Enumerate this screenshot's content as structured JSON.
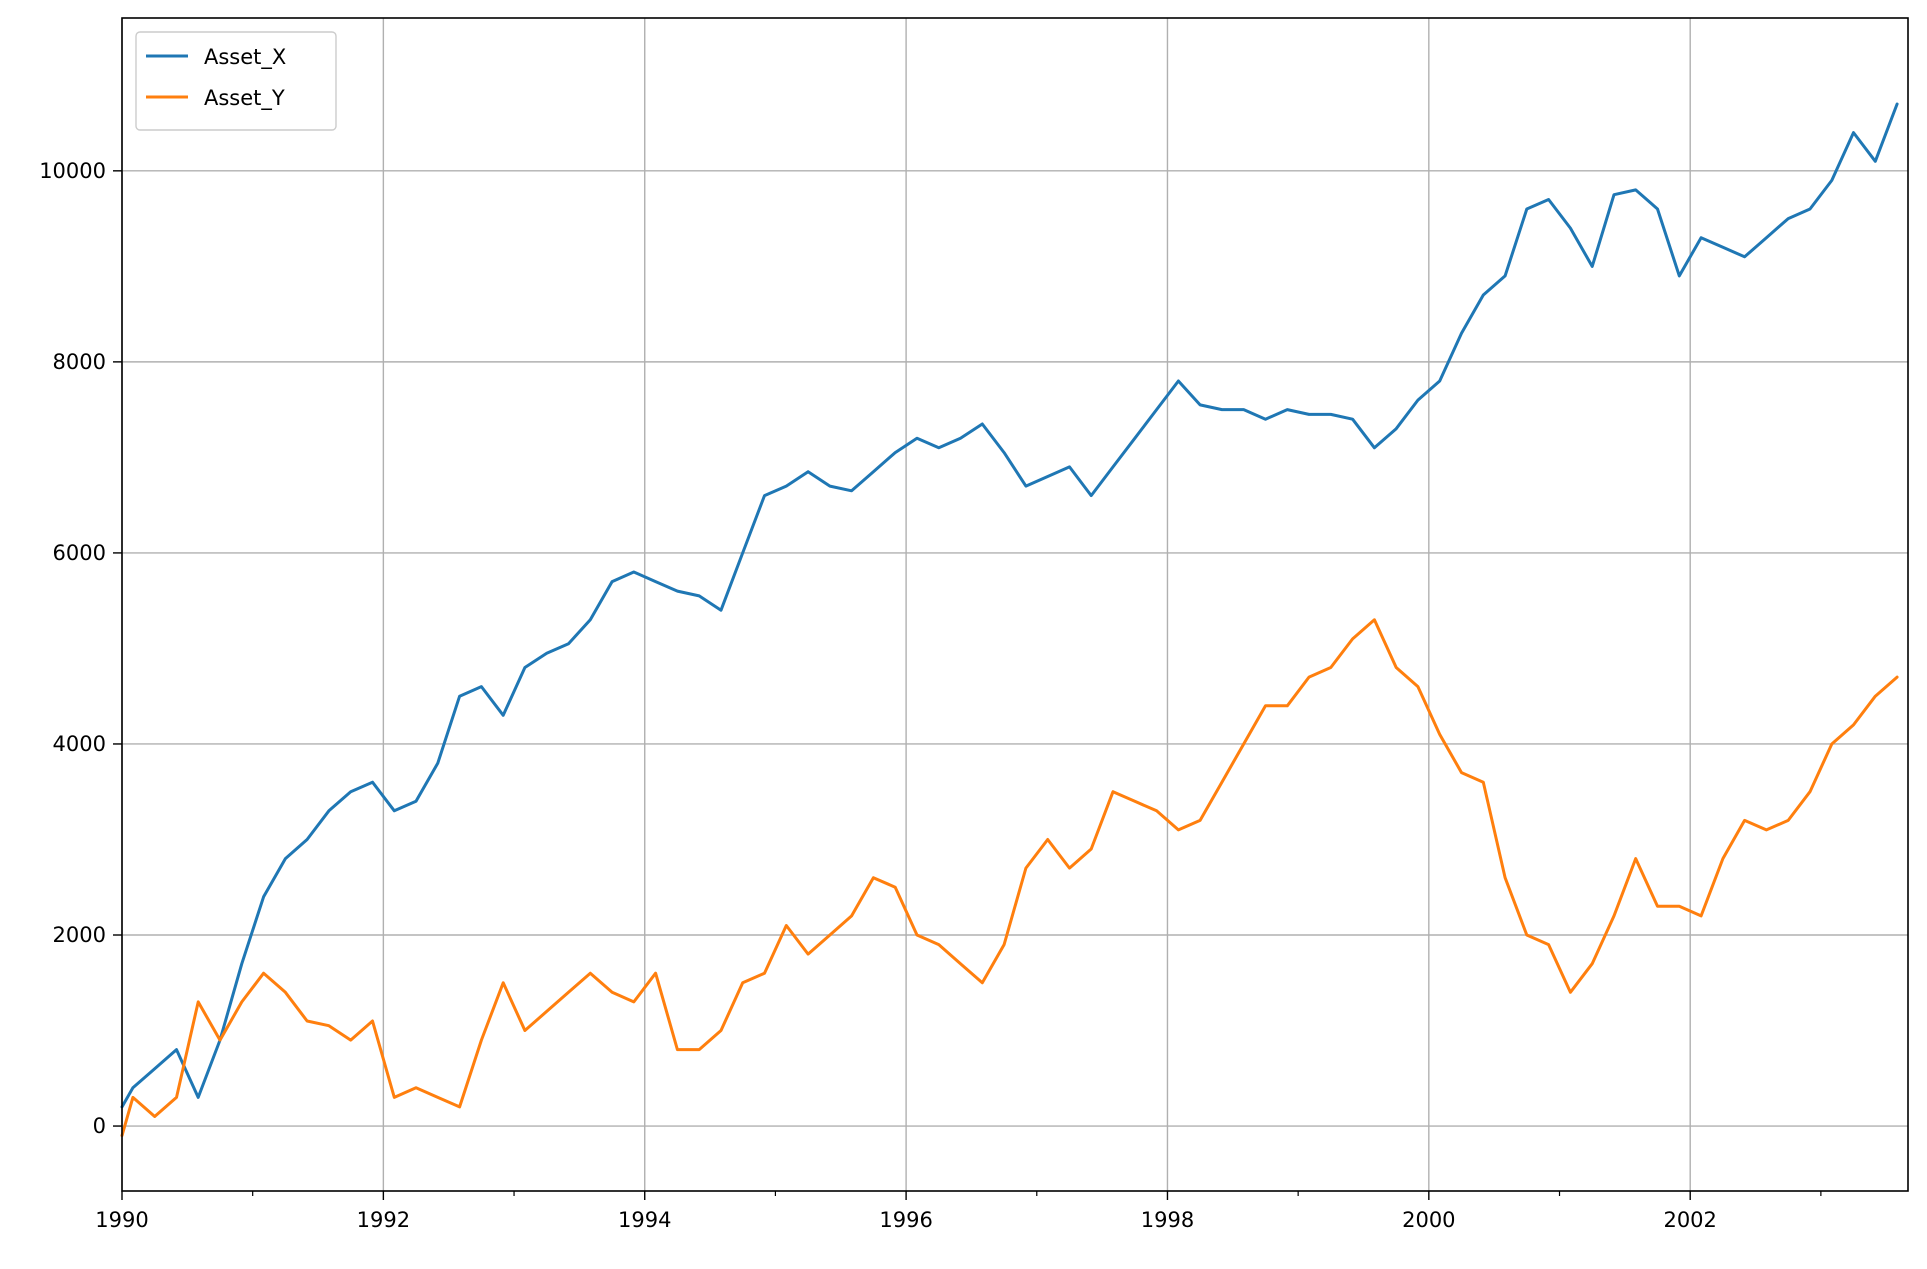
{
  "chart_data": {
    "type": "line",
    "title": "",
    "xlabel": "",
    "ylabel": "",
    "x_axis": {
      "kind": "date",
      "range": [
        "1990-01-01",
        "2003-09-01"
      ],
      "major_ticks": [
        "1990",
        "1992",
        "1994",
        "1996",
        "1998",
        "2000",
        "2002"
      ],
      "minor_ticks": [
        "1991",
        "1993",
        "1995",
        "1997",
        "1999",
        "2001",
        "2003"
      ]
    },
    "y_axis": {
      "range": [
        -680,
        11600
      ],
      "ticks": [
        "0",
        "2000",
        "4000",
        "6000",
        "8000",
        "10000"
      ]
    },
    "grid": true,
    "legend": {
      "position": "top-left"
    },
    "series": [
      {
        "name": "Asset_X",
        "color": "#1f77b4",
        "x": [
          "1990-01",
          "1990-02",
          "1990-04",
          "1990-06",
          "1990-08",
          "1990-10",
          "1990-12",
          "1991-02",
          "1991-04",
          "1991-06",
          "1991-08",
          "1991-10",
          "1991-12",
          "1992-02",
          "1992-04",
          "1992-06",
          "1992-08",
          "1992-10",
          "1992-12",
          "1993-02",
          "1993-04",
          "1993-06",
          "1993-08",
          "1993-10",
          "1993-12",
          "1994-02",
          "1994-04",
          "1994-06",
          "1994-08",
          "1994-10",
          "1994-12",
          "1995-02",
          "1995-04",
          "1995-06",
          "1995-08",
          "1995-10",
          "1995-12",
          "1996-02",
          "1996-04",
          "1996-06",
          "1996-08",
          "1996-10",
          "1996-12",
          "1997-02",
          "1997-04",
          "1997-06",
          "1997-08",
          "1997-10",
          "1997-12",
          "1998-02",
          "1998-04",
          "1998-06",
          "1998-08",
          "1998-10",
          "1998-12",
          "1999-02",
          "1999-04",
          "1999-06",
          "1999-08",
          "1999-10",
          "1999-12",
          "2000-02",
          "2000-04",
          "2000-06",
          "2000-08",
          "2000-10",
          "2000-12",
          "2001-02",
          "2001-04",
          "2001-06",
          "2001-08",
          "2001-10",
          "2001-12",
          "2002-02",
          "2002-04",
          "2002-06",
          "2002-08",
          "2002-10",
          "2002-12",
          "2003-02",
          "2003-04",
          "2003-06",
          "2003-08"
        ],
        "y": [
          200,
          400,
          600,
          800,
          300,
          900,
          1700,
          2400,
          2800,
          3000,
          3300,
          3500,
          3600,
          3300,
          3400,
          3800,
          4500,
          4600,
          4300,
          4800,
          4950,
          5050,
          5300,
          5700,
          5800,
          5700,
          5600,
          5550,
          5400,
          6000,
          6600,
          6700,
          6850,
          6700,
          6650,
          6850,
          7050,
          7200,
          7100,
          7200,
          7350,
          7050,
          6700,
          6800,
          6900,
          6600,
          6900,
          7200,
          7500,
          7800,
          7550,
          7500,
          7500,
          7400,
          7500,
          7450,
          7450,
          7400,
          7100,
          7300,
          7600,
          7800,
          8300,
          8700,
          8900,
          9600,
          9700,
          9400,
          9000,
          9750,
          9800,
          9600,
          8900,
          9300,
          9200,
          9100,
          9300,
          9500,
          9600,
          9900,
          10400,
          10100,
          10700
        ]
      },
      {
        "name": "Asset_Y",
        "color": "#ff7f0e",
        "x": [
          "1990-01",
          "1990-02",
          "1990-04",
          "1990-06",
          "1990-08",
          "1990-10",
          "1990-12",
          "1991-02",
          "1991-04",
          "1991-06",
          "1991-08",
          "1991-10",
          "1991-12",
          "1992-02",
          "1992-04",
          "1992-06",
          "1992-08",
          "1992-10",
          "1992-12",
          "1993-02",
          "1993-04",
          "1993-06",
          "1993-08",
          "1993-10",
          "1993-12",
          "1994-02",
          "1994-04",
          "1994-06",
          "1994-08",
          "1994-10",
          "1994-12",
          "1995-02",
          "1995-04",
          "1995-06",
          "1995-08",
          "1995-10",
          "1995-12",
          "1996-02",
          "1996-04",
          "1996-06",
          "1996-08",
          "1996-10",
          "1996-12",
          "1997-02",
          "1997-04",
          "1997-06",
          "1997-08",
          "1997-10",
          "1997-12",
          "1998-02",
          "1998-04",
          "1998-06",
          "1998-08",
          "1998-10",
          "1998-12",
          "1999-02",
          "1999-04",
          "1999-06",
          "1999-08",
          "1999-10",
          "1999-12",
          "2000-02",
          "2000-04",
          "2000-06",
          "2000-08",
          "2000-10",
          "2000-12",
          "2001-02",
          "2001-04",
          "2001-06",
          "2001-08",
          "2001-10",
          "2001-12",
          "2002-02",
          "2002-04",
          "2002-06",
          "2002-08",
          "2002-10",
          "2002-12",
          "2003-02",
          "2003-04",
          "2003-06",
          "2003-08"
        ],
        "y": [
          -100,
          300,
          100,
          300,
          1300,
          900,
          1300,
          1600,
          1400,
          1100,
          1050,
          900,
          1100,
          300,
          400,
          300,
          200,
          900,
          1500,
          1000,
          1200,
          1400,
          1600,
          1400,
          1300,
          1600,
          800,
          800,
          1000,
          1500,
          1600,
          2100,
          1800,
          2000,
          2200,
          2600,
          2500,
          2000,
          1900,
          1700,
          1500,
          1900,
          2700,
          3000,
          2700,
          2900,
          3500,
          3400,
          3300,
          3100,
          3200,
          3600,
          4000,
          4400,
          4400,
          4700,
          4800,
          5100,
          5300,
          4800,
          4600,
          4100,
          3700,
          3600,
          2600,
          2000,
          1900,
          1400,
          1700,
          2200,
          2800,
          2300,
          2300,
          2200,
          2800,
          3200,
          3100,
          3200,
          3500,
          4000,
          4200,
          4500,
          4700
        ]
      }
    ]
  }
}
